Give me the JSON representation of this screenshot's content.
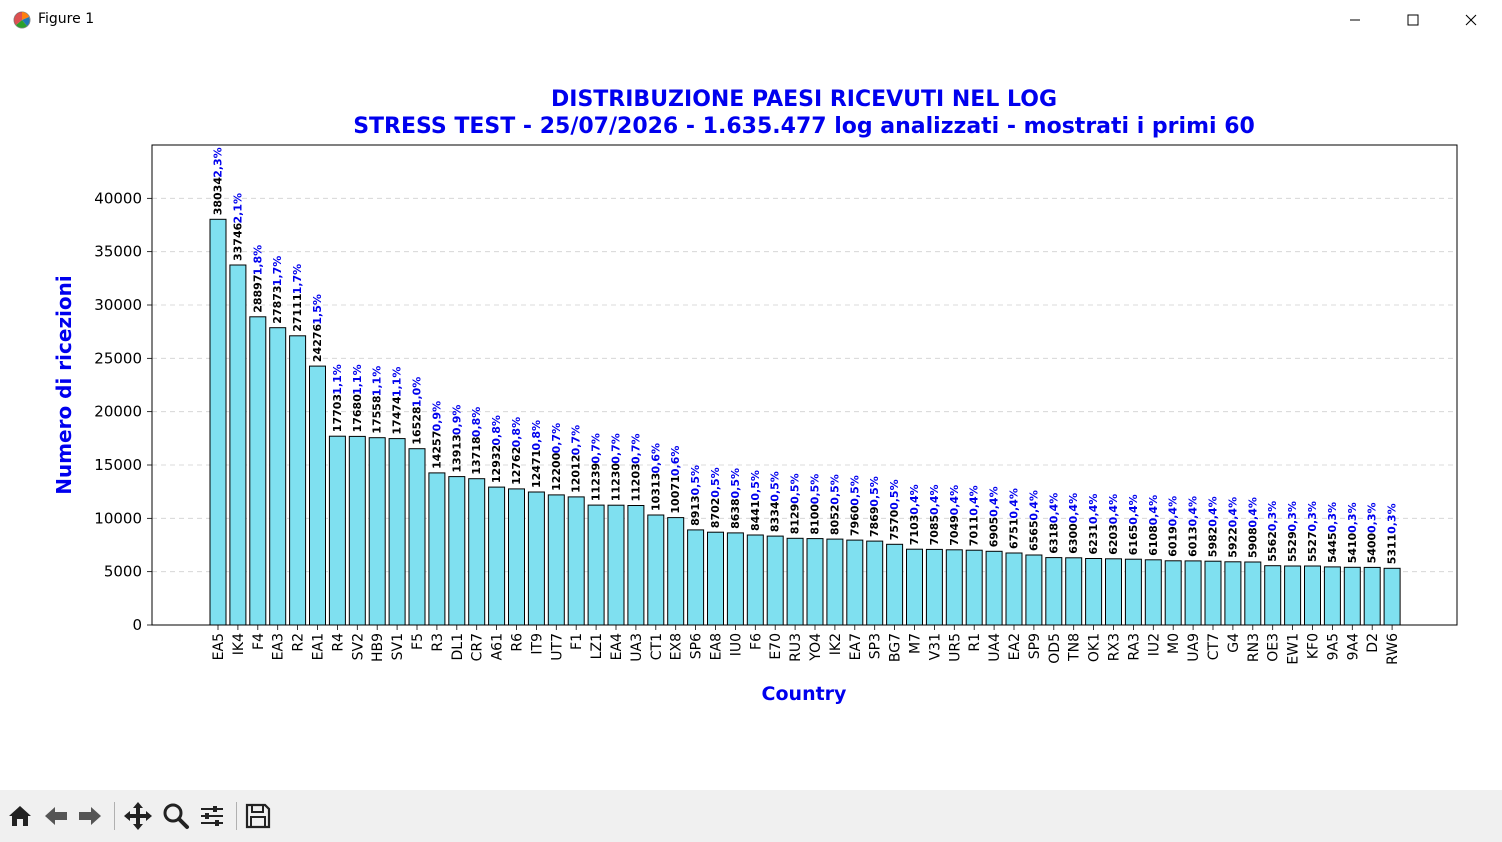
{
  "window": {
    "title": "Figure 1",
    "icons": {
      "app": "matplotlib-icon",
      "minimize": "minimize-icon",
      "maximize": "maximize-icon",
      "close": "close-icon"
    }
  },
  "toolbar": {
    "buttons": [
      "home-icon",
      "back-arrow-icon",
      "forward-arrow-icon",
      "pan-move-icon",
      "zoom-magnifier-icon",
      "configure-subplots-icon",
      "save-disk-icon"
    ]
  },
  "chart_data": {
    "type": "bar",
    "title": "DISTRIBUZIONE PAESI RICEVUTI NEL LOG",
    "subtitle": "STRESS TEST - 25/07/2026 - 1.635.477 log analizzati - mostrati i primi 60",
    "xlabel": "Country",
    "ylabel": "Numero di ricezioni",
    "ylim": [
      0,
      45000
    ],
    "yticks": [
      0,
      5000,
      10000,
      15000,
      20000,
      25000,
      30000,
      35000,
      40000
    ],
    "grid": "y-dashed",
    "bar_color": "#7fe0f0",
    "edge_color": "#000000",
    "title_color": "#0000ee",
    "percent_color": "#0000ee",
    "categories": [
      "EA5",
      "IK4",
      "F4",
      "EA3",
      "R2",
      "EA1",
      "R4",
      "SV2",
      "HB9",
      "SV1",
      "F5",
      "R3",
      "DL1",
      "CR7",
      "A61",
      "R6",
      "IT9",
      "UT7",
      "F1",
      "LZ1",
      "EA4",
      "UA3",
      "CT1",
      "EX8",
      "SP6",
      "EA8",
      "IU0",
      "F6",
      "E70",
      "RU3",
      "YO4",
      "IK2",
      "EA7",
      "SP3",
      "BG7",
      "M7",
      "V31",
      "UR5",
      "R1",
      "UA4",
      "EA2",
      "SP9",
      "OD5",
      "TN8",
      "OK1",
      "RX3",
      "RA3",
      "IU2",
      "M0",
      "UA9",
      "CT7",
      "G4",
      "RN3",
      "OE3",
      "EW1",
      "KF0",
      "9A5",
      "9A4",
      "D2",
      "RW6"
    ],
    "values": [
      38034,
      33746,
      28897,
      27873,
      27111,
      24276,
      17703,
      17680,
      17558,
      17474,
      16528,
      14257,
      13913,
      13718,
      12932,
      12762,
      12471,
      12200,
      12012,
      11239,
      11230,
      11203,
      10313,
      10071,
      8913,
      8702,
      8638,
      8441,
      8334,
      8129,
      8100,
      8052,
      7960,
      7869,
      7570,
      7103,
      7085,
      7049,
      7011,
      6905,
      6751,
      6565,
      6318,
      6300,
      6231,
      6203,
      6165,
      6108,
      6019,
      6013,
      5982,
      5922,
      5908,
      5562,
      5529,
      5527,
      5445,
      5410,
      5400,
      5311
    ],
    "percents": [
      "2,3%",
      "2,1%",
      "1,8%",
      "1,7%",
      "1,7%",
      "1,5%",
      "1,1%",
      "1,1%",
      "1,1%",
      "1,1%",
      "1,0%",
      "0,9%",
      "0,9%",
      "0,8%",
      "0,8%",
      "0,8%",
      "0,8%",
      "0,7%",
      "0,7%",
      "0,7%",
      "0,7%",
      "0,7%",
      "0,6%",
      "0,6%",
      "0,5%",
      "0,5%",
      "0,5%",
      "0,5%",
      "0,5%",
      "0,5%",
      "0,5%",
      "0,5%",
      "0,5%",
      "0,5%",
      "0,5%",
      "0,4%",
      "0,4%",
      "0,4%",
      "0,4%",
      "0,4%",
      "0,4%",
      "0,4%",
      "0,4%",
      "0,4%",
      "0,4%",
      "0,4%",
      "0,4%",
      "0,4%",
      "0,4%",
      "0,4%",
      "0,4%",
      "0,4%",
      "0,4%",
      "0,3%",
      "0,3%",
      "0,3%",
      "0,3%",
      "0,3%",
      "0,3%",
      "0,3%"
    ]
  }
}
